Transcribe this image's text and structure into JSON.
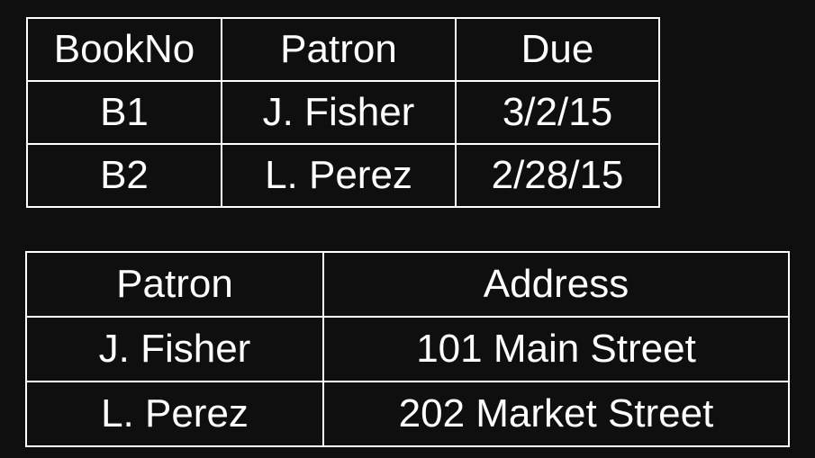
{
  "loans_table": {
    "headers": [
      "BookNo",
      "Patron",
      "Due"
    ],
    "rows": [
      [
        "B1",
        "J. Fisher",
        "3/2/15"
      ],
      [
        "B2",
        "L. Perez",
        "2/28/15"
      ]
    ]
  },
  "patrons_table": {
    "headers": [
      "Patron",
      "Address"
    ],
    "rows": [
      [
        "J. Fisher",
        "101 Main Street"
      ],
      [
        "L. Perez",
        "202 Market Street"
      ]
    ]
  },
  "colors": {
    "background": "#0f0f0f",
    "foreground": "#ffffff"
  }
}
